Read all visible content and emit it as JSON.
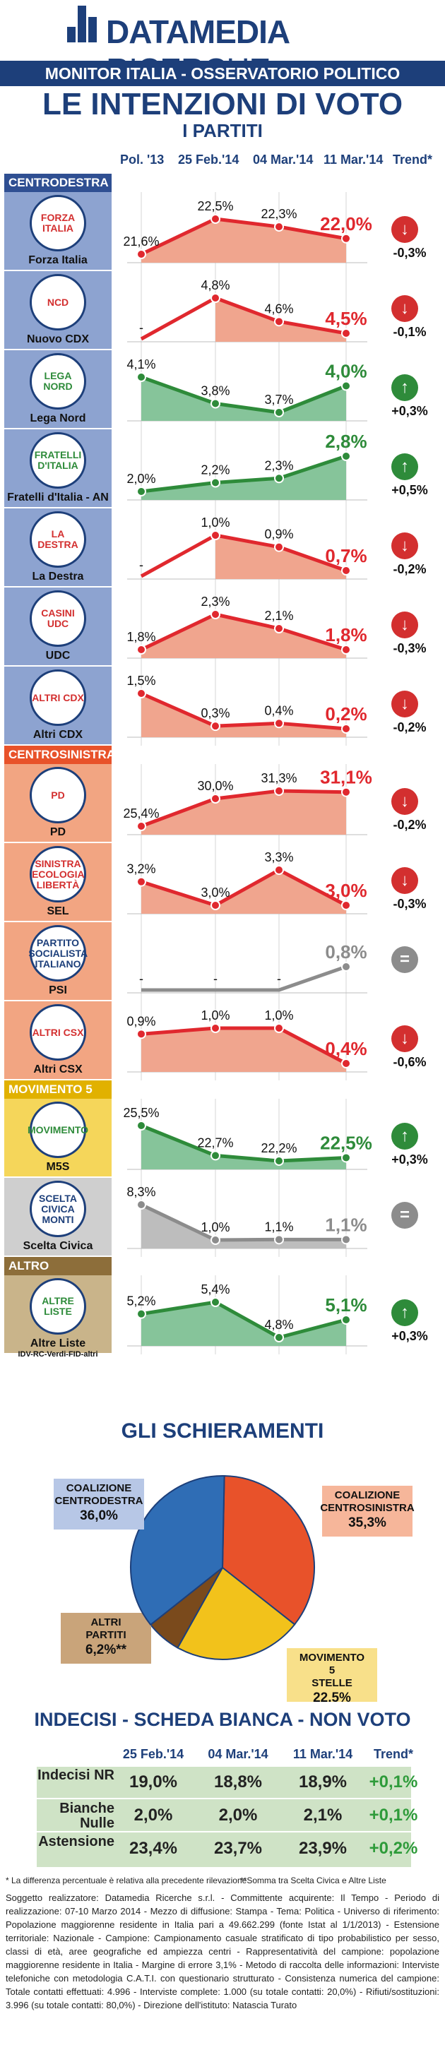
{
  "header": {
    "brand_bold": "DATAMEDIA",
    "brand_light": "RICERCHE",
    "subtitle_bar": "MONITOR ITALIA - OSSERVATORIO POLITICO",
    "title": "LE INTENZIONI DI VOTO",
    "subtitle": "I PARTITI"
  },
  "columns": [
    "Pol. '13",
    "25 Feb.'14",
    "04 Mar.'14",
    "11 Mar.'14",
    "Trend*"
  ],
  "sections": {
    "centrodestra": "CENTRODESTRA",
    "centrosinistra": "CENTROSINISTRA",
    "m5s": "MOVIMENTO 5 STELLE",
    "altro": "ALTRO"
  },
  "colors": {
    "red": "#e0282e",
    "green": "#2e8b3a",
    "grey": "#8c8c8c",
    "navy": "#1d3f7a",
    "blue_band": "#8da3d0",
    "orange_band": "#f2a582",
    "yellow_band": "#f5d65a",
    "grey_band": "#cfcfcf",
    "tan_band": "#c9b48a"
  },
  "chart_data": [
    {
      "type": "line",
      "categories": [
        "Pol. '13",
        "25 Feb.'14",
        "04 Mar.'14",
        "11 Mar.'14"
      ],
      "series": [
        {
          "name": "Forza Italia",
          "group": "centrodestra",
          "logo": "FORZA ITALIA",
          "color": "red",
          "values": [
            21.6,
            22.5,
            22.3,
            22.0
          ],
          "labels": [
            "21,6%",
            "22,5%",
            "22,3%",
            "22,0%"
          ],
          "trend": "-0,3%",
          "trend_dir": "down"
        },
        {
          "name": "Nuovo CDX",
          "group": "centrodestra",
          "logo": "NCD",
          "color": "red",
          "values": [
            null,
            4.8,
            4.6,
            4.5
          ],
          "labels": [
            "-",
            "4,8%",
            "4,6%",
            "4,5%"
          ],
          "trend": "-0,1%",
          "trend_dir": "down"
        },
        {
          "name": "Lega Nord",
          "group": "centrodestra",
          "logo": "LEGA NORD",
          "color": "green",
          "values": [
            4.1,
            3.8,
            3.7,
            4.0
          ],
          "labels": [
            "4,1%",
            "3,8%",
            "3,7%",
            "4,0%"
          ],
          "trend": "+0,3%",
          "trend_dir": "up"
        },
        {
          "name": "Fratelli d'Italia - AN",
          "group": "centrodestra",
          "logo": "FRATELLI D'ITALIA",
          "color": "green",
          "values": [
            2.0,
            2.2,
            2.3,
            2.8
          ],
          "labels": [
            "2,0%",
            "2,2%",
            "2,3%",
            "2,8%"
          ],
          "trend": "+0,5%",
          "trend_dir": "up"
        },
        {
          "name": "La Destra",
          "group": "centrodestra",
          "logo": "LA DESTRA",
          "color": "red",
          "values": [
            null,
            1.0,
            0.9,
            0.7
          ],
          "labels": [
            "-",
            "1,0%",
            "0,9%",
            "0,7%"
          ],
          "trend": "-0,2%",
          "trend_dir": "down"
        },
        {
          "name": "UDC",
          "group": "centrodestra",
          "logo": "CASINI UDC",
          "color": "red",
          "values": [
            1.8,
            2.3,
            2.1,
            1.8
          ],
          "labels": [
            "1,8%",
            "2,3%",
            "2,1%",
            "1,8%"
          ],
          "trend": "-0,3%",
          "trend_dir": "down"
        },
        {
          "name": "Altri CDX",
          "group": "centrodestra",
          "logo": "ALTRI CDX",
          "color": "red",
          "values": [
            1.5,
            0.3,
            0.4,
            0.2
          ],
          "labels": [
            "1,5%",
            "0,3%",
            "0,4%",
            "0,2%"
          ],
          "trend": "-0,2%",
          "trend_dir": "down"
        },
        {
          "name": "PD",
          "group": "centrosinistra",
          "logo": "PD",
          "color": "red",
          "values": [
            25.4,
            30.0,
            31.3,
            31.1
          ],
          "labels": [
            "25,4%",
            "30,0%",
            "31,3%",
            "31,1%"
          ],
          "trend": "-0,2%",
          "trend_dir": "down"
        },
        {
          "name": "SEL",
          "group": "centrosinistra",
          "logo": "SINISTRA ECOLOGIA LIBERTÀ",
          "color": "red",
          "values": [
            3.2,
            3.0,
            3.3,
            3.0
          ],
          "labels": [
            "3,2%",
            "3,0%",
            "3,3%",
            "3,0%"
          ],
          "trend": "-0,3%",
          "trend_dir": "down"
        },
        {
          "name": "PSI",
          "group": "centrosinistra",
          "logo": "PARTITO SOCIALISTA ITALIANO",
          "color": "grey",
          "values": [
            null,
            null,
            null,
            0.8
          ],
          "labels": [
            "-",
            "-",
            "-",
            "0,8%"
          ],
          "trend": "",
          "trend_dir": "equal"
        },
        {
          "name": "Altri CSX",
          "group": "centrosinistra",
          "logo": "ALTRI CSX",
          "color": "red",
          "values": [
            0.9,
            1.0,
            1.0,
            0.4
          ],
          "labels": [
            "0,9%",
            "1,0%",
            "1,0%",
            "0,4%"
          ],
          "trend": "-0,6%",
          "trend_dir": "down"
        },
        {
          "name": "M5S",
          "group": "m5s",
          "logo": "MOVIMENTO",
          "color": "green",
          "values": [
            25.5,
            22.7,
            22.2,
            22.5
          ],
          "labels": [
            "25,5%",
            "22,7%",
            "22,2%",
            "22,5%"
          ],
          "trend": "+0,3%",
          "trend_dir": "up"
        },
        {
          "name": "Scelta Civica",
          "group": "m5s",
          "logo": "SCELTA CIVICA MONTI",
          "color": "grey",
          "values": [
            8.3,
            1.0,
            1.1,
            1.1
          ],
          "labels": [
            "8,3%",
            "1,0%",
            "1,1%",
            "1,1%"
          ],
          "trend": "",
          "trend_dir": "equal"
        },
        {
          "name": "Altre Liste",
          "group": "altro",
          "logo": "ALTRE LISTE",
          "sub": "IDV-RC-Verdi-FID-altri",
          "color": "green",
          "values": [
            5.2,
            5.4,
            4.8,
            5.1
          ],
          "labels": [
            "5,2%",
            "5,4%",
            "4,8%",
            "5,1%"
          ],
          "trend": "+0,3%",
          "trend_dir": "up"
        }
      ]
    },
    {
      "type": "pie",
      "title": "GLI SCHIERAMENTI",
      "slices": [
        {
          "name": "COALIZIONE CENTROSINISTRA",
          "value": 35.3,
          "label": "35,3%",
          "color": "#e8522a"
        },
        {
          "name": "MOVIMENTO 5 STELLE",
          "value": 22.5,
          "label": "22,5%",
          "color": "#f2c21b"
        },
        {
          "name": "ALTRI PARTITI",
          "value": 6.2,
          "label": "6,2%**",
          "color": "#7a4a1c"
        },
        {
          "name": "COALIZIONE CENTRODESTRA",
          "value": 36.0,
          "label": "36,0%",
          "color": "#2f6db5"
        }
      ]
    },
    {
      "type": "table",
      "title": "INDECISI - SCHEDA BIANCA - NON VOTO",
      "columns": [
        "25 Feb.'14",
        "04 Mar.'14",
        "11 Mar.'14",
        "Trend*"
      ],
      "rows": [
        {
          "label": "Indecisi NR",
          "values": [
            "19,0%",
            "18,8%",
            "18,9%"
          ],
          "trend": "+0,1%"
        },
        {
          "label": "Bianche Nulle",
          "values": [
            "2,0%",
            "2,0%",
            "2,1%"
          ],
          "trend": "+0,1%"
        },
        {
          "label": "Astensione",
          "values": [
            "23,4%",
            "23,7%",
            "23,9%"
          ],
          "trend": "+0,2%"
        }
      ]
    }
  ],
  "notes": {
    "note1": "* La differenza percentuale è relativa alla precedente rilevazione",
    "note2": "**Somma tra Scelta Civica e Altre Liste",
    "methodology": "Soggetto realizzatore: Datamedia Ricerche s.r.l. - Committente acquirente: Il Tempo - Periodo di realizzazione: 07-10 Marzo 2014 - Mezzo di diffusione: Stampa - Tema: Politica - Universo di riferimento: Popolazione maggiorenne residente in Italia pari a 49.662.299 (fonte Istat al 1/1/2013) - Estensione territoriale: Nazionale - Campione: Campionamento casuale stratificato di tipo probabilistico per sesso, classi di età, aree geografiche ed ampiezza centri - Rappresentatività del campione: popolazione maggiorenne residente in Italia - Margine di errore 3,1% - Metodo di raccolta delle informazioni: Interviste telefoniche con metodologia C.A.T.I. con questionario strutturato - Consistenza numerica del campione: Totale contatti effettuati: 4.996 - Interviste complete: 1.000 (su totale contatti: 20,0%) - Rifiuti/sostituzioni: 3.996 (su totale contatti: 80,0%) - Direzione dell'istituto: Natascia Turato"
  }
}
